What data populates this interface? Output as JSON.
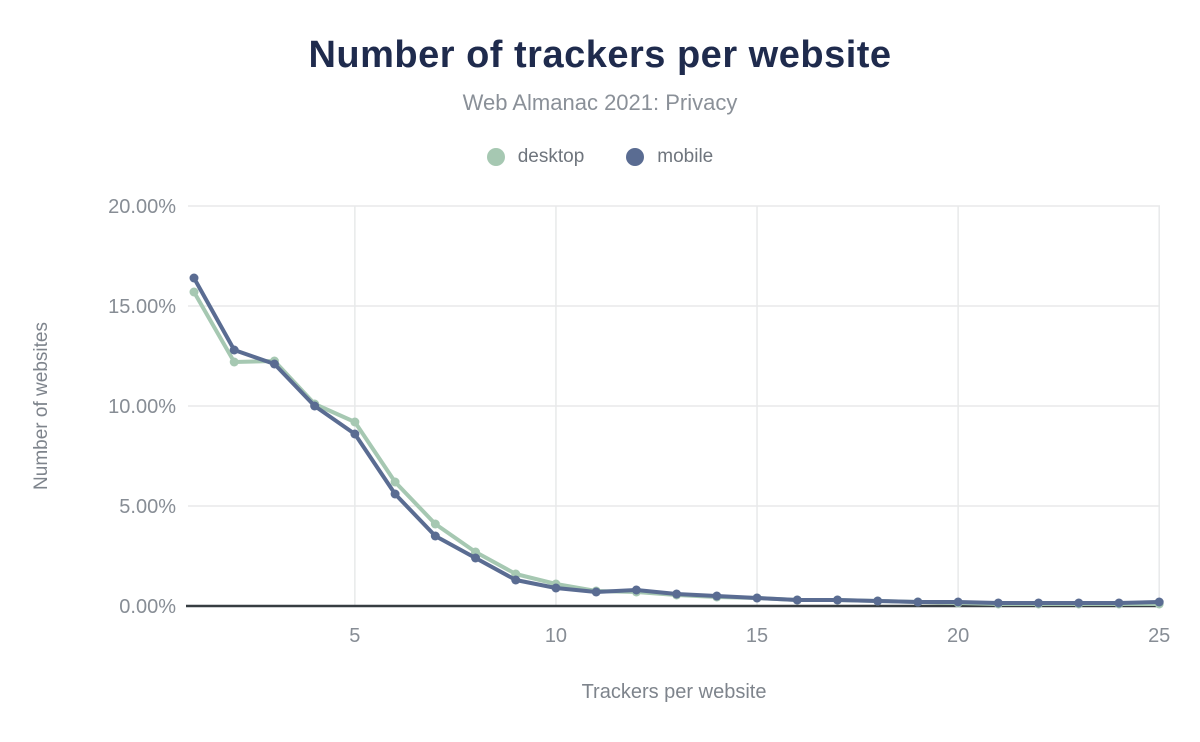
{
  "title": "Number of trackers per website",
  "subtitle": "Web Almanac 2021: Privacy",
  "legend": [
    {
      "label": "desktop",
      "color": "#a6c8b2"
    },
    {
      "label": "mobile",
      "color": "#5a6c92"
    }
  ],
  "colors": {
    "title_text": "#1f2b4d",
    "subtitle_text": "#8a9098",
    "legend_text": "#6f757d",
    "tick_text": "#878d95",
    "axis_title_text": "#7e848c",
    "gridline": "#e8e9ea",
    "axis_line": "#373d42",
    "background": "#ffffff"
  },
  "chart_data": {
    "type": "line",
    "title": "Number of trackers per website",
    "subtitle": "Web Almanac 2021: Privacy",
    "xlabel": "Trackers per website",
    "ylabel": "Number of websites",
    "unit": "%",
    "xlim": [
      1,
      25
    ],
    "ylim": [
      0,
      20
    ],
    "grid": true,
    "legend_position": "top",
    "x_ticks": [
      5,
      10,
      15,
      20,
      25
    ],
    "y_ticks": [
      {
        "value": 0,
        "label": "0.00%"
      },
      {
        "value": 5,
        "label": "5.00%"
      },
      {
        "value": 10,
        "label": "10.00%"
      },
      {
        "value": 15,
        "label": "15.00%"
      },
      {
        "value": 20,
        "label": "20.00%"
      }
    ],
    "x": [
      1,
      2,
      3,
      4,
      5,
      6,
      7,
      8,
      9,
      10,
      11,
      12,
      13,
      14,
      15,
      16,
      17,
      18,
      19,
      20,
      21,
      22,
      23,
      24,
      25
    ],
    "series": [
      {
        "name": "desktop",
        "color": "#a6c8b2",
        "values": [
          15.7,
          12.2,
          12.25,
          10.1,
          9.2,
          6.2,
          4.1,
          2.7,
          1.6,
          1.1,
          0.75,
          0.7,
          0.55,
          0.45,
          0.4,
          0.3,
          0.3,
          0.25,
          0.2,
          0.15,
          0.1,
          0.1,
          0.1,
          0.1,
          0.1
        ]
      },
      {
        "name": "mobile",
        "color": "#5a6c92",
        "values": [
          16.4,
          12.8,
          12.1,
          10.0,
          8.6,
          5.6,
          3.5,
          2.4,
          1.3,
          0.9,
          0.7,
          0.8,
          0.6,
          0.5,
          0.4,
          0.3,
          0.3,
          0.25,
          0.2,
          0.2,
          0.15,
          0.15,
          0.15,
          0.15,
          0.2
        ]
      }
    ]
  }
}
